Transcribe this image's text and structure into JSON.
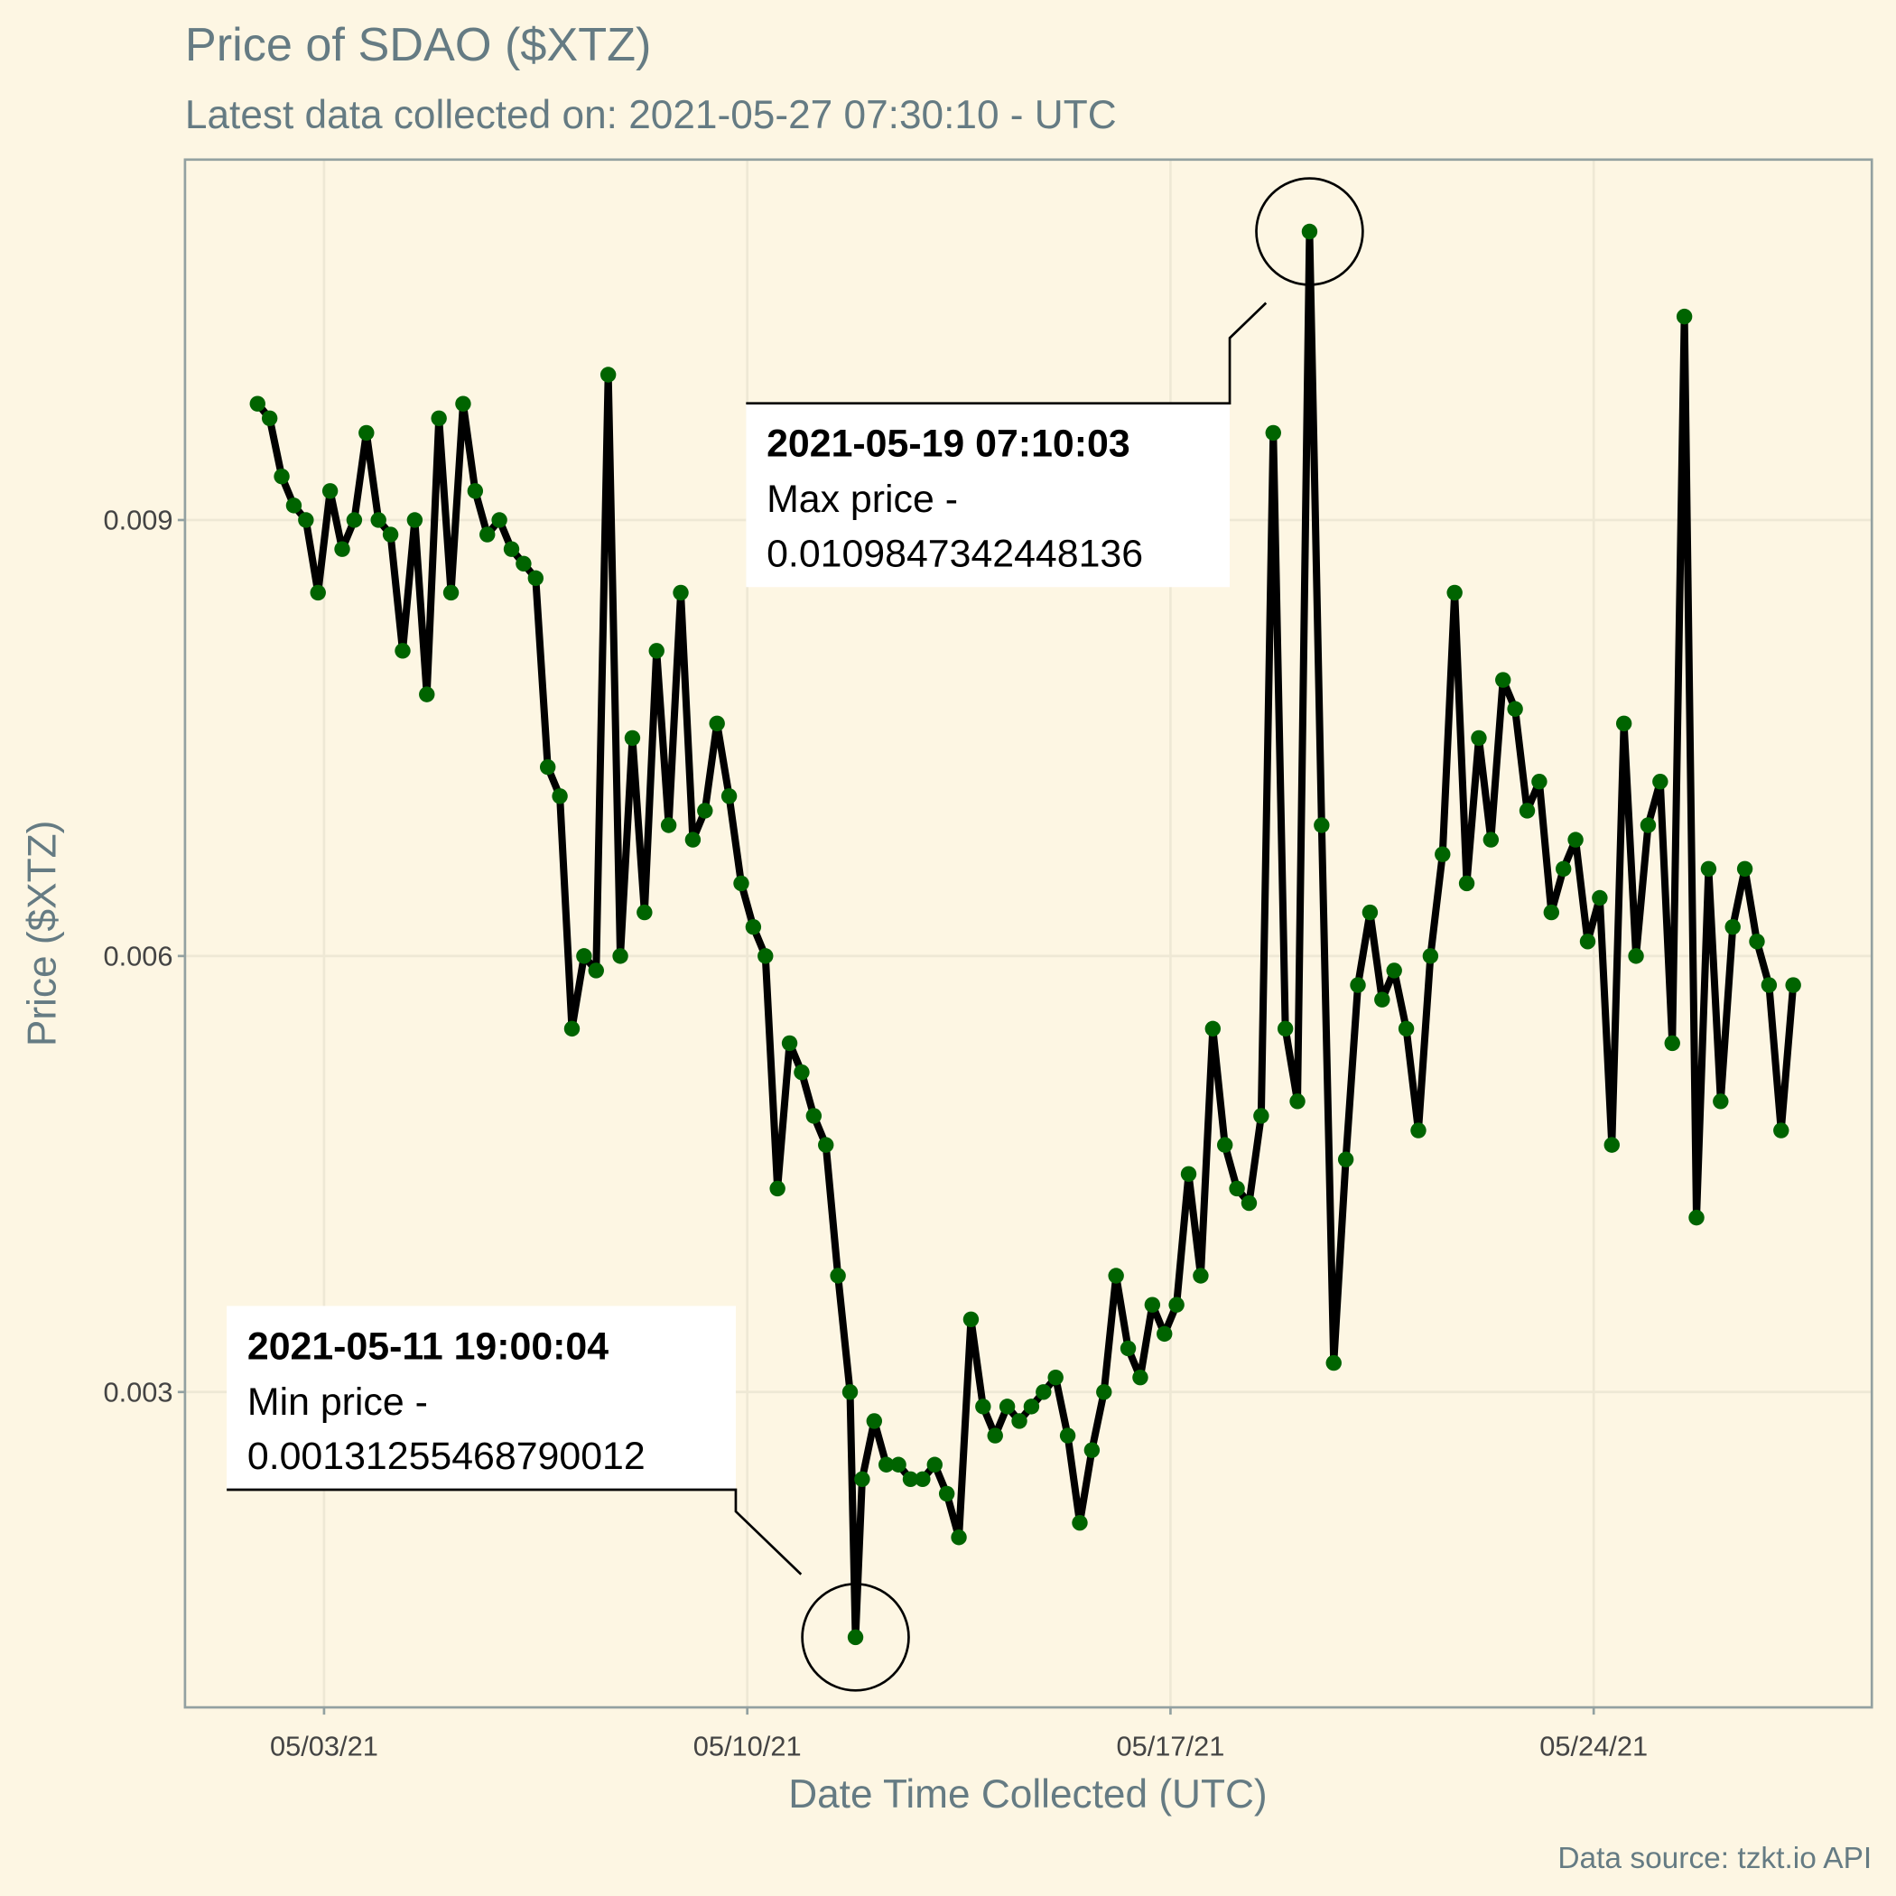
{
  "chart_data": {
    "type": "line",
    "title": "Price of SDAO ($XTZ)",
    "subtitle": "Latest data collected on: 2021-05-27 07:30:10  - UTC",
    "x_label": "Date Time Collected (UTC)",
    "y_label": "Price ($XTZ)",
    "caption": "Data source: tzkt.io API",
    "xlim": [
      0.7,
      28.6
    ],
    "xticks": [
      {
        "value": 3,
        "label": "05/03/21"
      },
      {
        "value": 10,
        "label": "05/10/21"
      },
      {
        "value": 17,
        "label": "05/17/21"
      },
      {
        "value": 24,
        "label": "05/24/21"
      }
    ],
    "ylim": [
      0.00083,
      0.01148
    ],
    "yticks": [
      0.003,
      0.006,
      0.009
    ],
    "grid": true,
    "series": [
      {
        "line_color": "#000000",
        "color": "#006400",
        "x": [
          1.9,
          2.1,
          2.3,
          2.5,
          2.7,
          2.9,
          3.1,
          3.3,
          3.5,
          3.7,
          3.9,
          4.1,
          4.3,
          4.5,
          4.7,
          4.9,
          5.1,
          5.3,
          5.5,
          5.7,
          5.9,
          6.1,
          6.3,
          6.5,
          6.7,
          6.9,
          7.1,
          7.3,
          7.5,
          7.7,
          7.9,
          8.1,
          8.3,
          8.5,
          8.7,
          8.9,
          9.1,
          9.3,
          9.5,
          9.7,
          9.9,
          10.1,
          10.3,
          10.5,
          10.7,
          10.9,
          11.1,
          11.3,
          11.5,
          11.7,
          11.79,
          11.9,
          12.1,
          12.3,
          12.5,
          12.7,
          12.9,
          13.1,
          13.3,
          13.5,
          13.7,
          13.9,
          14.1,
          14.3,
          14.5,
          14.7,
          14.9,
          15.1,
          15.3,
          15.5,
          15.7,
          15.9,
          16.1,
          16.3,
          16.5,
          16.7,
          16.9,
          17.1,
          17.3,
          17.5,
          17.7,
          17.9,
          18.1,
          18.3,
          18.5,
          18.7,
          18.9,
          19.1,
          19.3,
          19.5,
          19.7,
          19.9,
          20.1,
          20.3,
          20.5,
          20.7,
          20.9,
          21.1,
          21.3,
          21.5,
          21.7,
          21.9,
          22.1,
          22.3,
          22.5,
          22.7,
          22.9,
          23.1,
          23.3,
          23.5,
          23.7,
          23.9,
          24.1,
          24.3,
          24.5,
          24.7,
          24.9,
          25.1,
          25.3,
          25.5,
          25.7,
          25.9,
          26.1,
          26.3,
          26.5,
          26.7,
          26.9,
          27.1,
          27.3
        ],
        "values": [
          0.0098,
          0.0097,
          0.0093,
          0.0091,
          0.009,
          0.0085,
          0.0092,
          0.0088,
          0.009,
          0.0096,
          0.009,
          0.0089,
          0.0081,
          0.009,
          0.0078,
          0.0097,
          0.0085,
          0.0098,
          0.0092,
          0.0089,
          0.009,
          0.0088,
          0.0087,
          0.0086,
          0.0073,
          0.0071,
          0.0055,
          0.006,
          0.0059,
          0.01,
          0.006,
          0.0075,
          0.0063,
          0.0081,
          0.0069,
          0.0085,
          0.0068,
          0.007,
          0.0076,
          0.0071,
          0.0065,
          0.0062,
          0.006,
          0.0044,
          0.0054,
          0.0052,
          0.0049,
          0.0047,
          0.0038,
          0.003,
          0.00131255468790012,
          0.0024,
          0.0028,
          0.0025,
          0.0025,
          0.0024,
          0.0024,
          0.0025,
          0.0023,
          0.002,
          0.0035,
          0.0029,
          0.0027,
          0.0029,
          0.0028,
          0.0029,
          0.003,
          0.0031,
          0.0027,
          0.0021,
          0.0026,
          0.003,
          0.0038,
          0.0033,
          0.0031,
          0.0036,
          0.0034,
          0.0036,
          0.0045,
          0.0038,
          0.0055,
          0.0047,
          0.0044,
          0.0043,
          0.0049,
          0.0096,
          0.0055,
          0.005,
          0.0109847342448136,
          0.0069,
          0.0032,
          0.0046,
          0.0058,
          0.0063,
          0.0057,
          0.0059,
          0.0055,
          0.0048,
          0.006,
          0.0067,
          0.0085,
          0.0065,
          0.0075,
          0.0068,
          0.0079,
          0.0077,
          0.007,
          0.0072,
          0.0063,
          0.0066,
          0.0068,
          0.0061,
          0.0064,
          0.0047,
          0.0076,
          0.006,
          0.0069,
          0.0072,
          0.0054,
          0.0104,
          0.0042,
          0.0066,
          0.005,
          0.0062,
          0.0066,
          0.0061,
          0.0058,
          0.0048,
          0.0058
        ]
      }
    ],
    "annotations": [
      {
        "x": 19.3,
        "y": 0.0109847342448136,
        "title": "2021-05-19 07:10:03",
        "text": "Max price -"
      },
      {
        "x": 11.79,
        "y": 0.00131255468790012,
        "title": "2021-05-11 19:00:04",
        "text": "Min price -"
      }
    ]
  }
}
